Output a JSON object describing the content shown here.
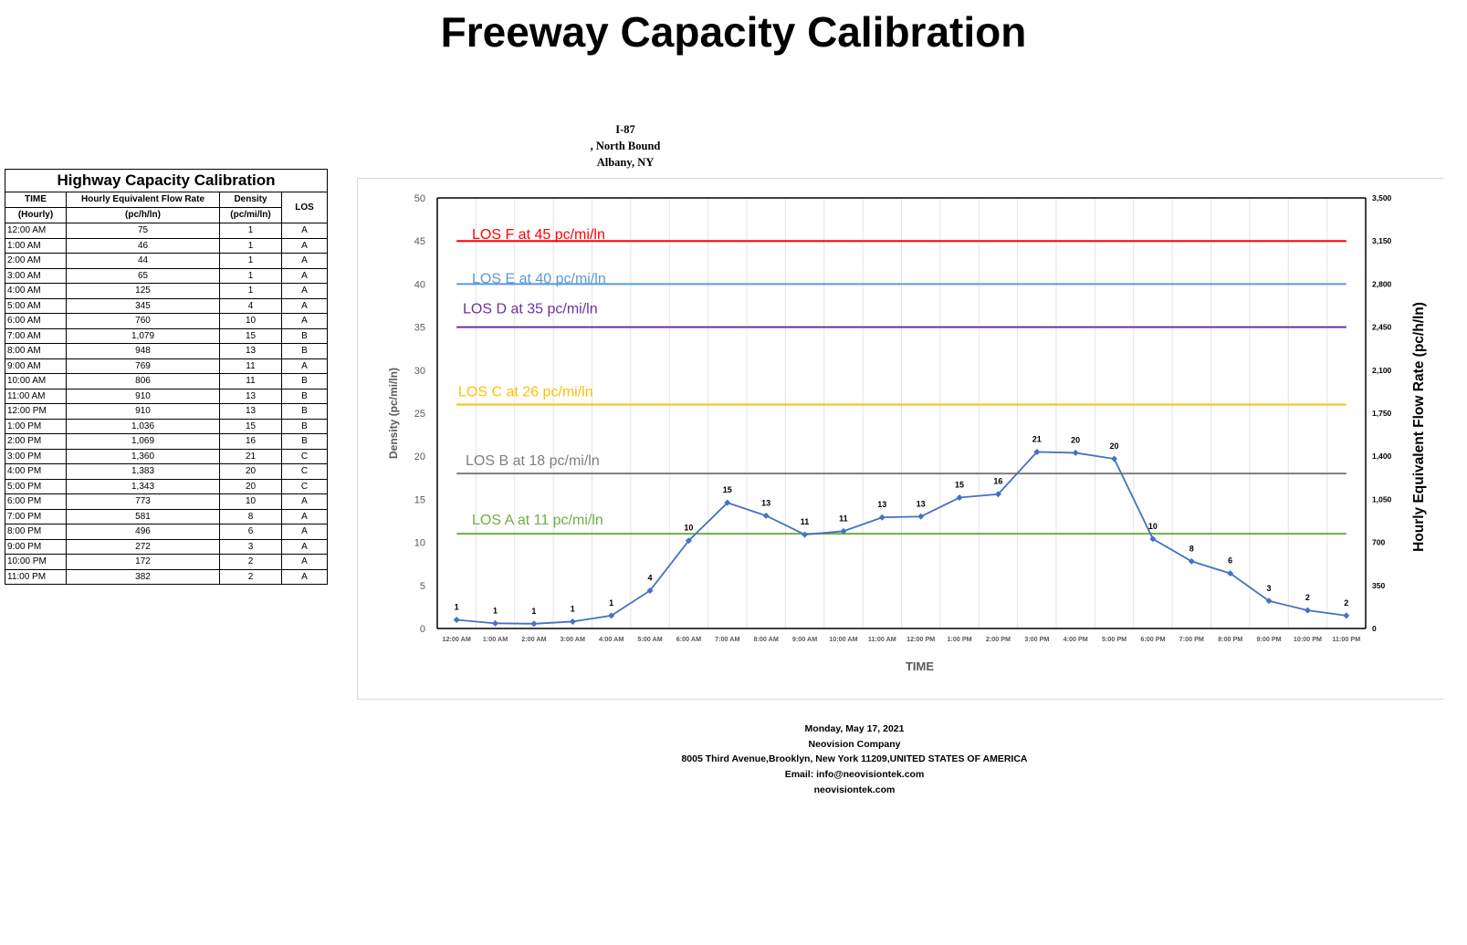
{
  "page_title": "Freeway Capacity Calibration",
  "table": {
    "title": "Highway Capacity Calibration",
    "headers": {
      "time_line1": "TIME",
      "time_line2": "(Hourly)",
      "flow_line1": "Hourly Equivalent Flow Rate",
      "flow_line2": "(pc/h/ln)",
      "density_line1": "Density",
      "density_line2": "(pc/mi/ln)",
      "los": "LOS"
    },
    "rows": [
      {
        "time": "12:00 AM",
        "flow": "75",
        "density": "1",
        "los": "A"
      },
      {
        "time": "1:00 AM",
        "flow": "46",
        "density": "1",
        "los": "A"
      },
      {
        "time": "2:00 AM",
        "flow": "44",
        "density": "1",
        "los": "A"
      },
      {
        "time": "3:00 AM",
        "flow": "65",
        "density": "1",
        "los": "A"
      },
      {
        "time": "4:00 AM",
        "flow": "125",
        "density": "1",
        "los": "A"
      },
      {
        "time": "5:00 AM",
        "flow": "345",
        "density": "4",
        "los": "A"
      },
      {
        "time": "6:00 AM",
        "flow": "760",
        "density": "10",
        "los": "A"
      },
      {
        "time": "7:00 AM",
        "flow": "1,079",
        "density": "15",
        "los": "B"
      },
      {
        "time": "8:00 AM",
        "flow": "948",
        "density": "13",
        "los": "B"
      },
      {
        "time": "9:00 AM",
        "flow": "769",
        "density": "11",
        "los": "A"
      },
      {
        "time": "10:00 AM",
        "flow": "806",
        "density": "11",
        "los": "B"
      },
      {
        "time": "11:00 AM",
        "flow": "910",
        "density": "13",
        "los": "B"
      },
      {
        "time": "12:00 PM",
        "flow": "910",
        "density": "13",
        "los": "B"
      },
      {
        "time": "1:00 PM",
        "flow": "1,036",
        "density": "15",
        "los": "B"
      },
      {
        "time": "2:00 PM",
        "flow": "1,069",
        "density": "16",
        "los": "B"
      },
      {
        "time": "3:00 PM",
        "flow": "1,360",
        "density": "21",
        "los": "C"
      },
      {
        "time": "4:00 PM",
        "flow": "1,383",
        "density": "20",
        "los": "C"
      },
      {
        "time": "5:00 PM",
        "flow": "1,343",
        "density": "20",
        "los": "C"
      },
      {
        "time": "6:00 PM",
        "flow": "773",
        "density": "10",
        "los": "A"
      },
      {
        "time": "7:00 PM",
        "flow": "581",
        "density": "8",
        "los": "A"
      },
      {
        "time": "8:00 PM",
        "flow": "496",
        "density": "6",
        "los": "A"
      },
      {
        "time": "9:00 PM",
        "flow": "272",
        "density": "3",
        "los": "A"
      },
      {
        "time": "10:00 PM",
        "flow": "172",
        "density": "2",
        "los": "A"
      },
      {
        "time": "11:00 PM",
        "flow": "382",
        "density": "2",
        "los": "A"
      }
    ]
  },
  "chart_heading": {
    "line1": "I-87",
    "line2": ", North Bound",
    "line3": "Albany, NY"
  },
  "chart_data": {
    "type": "line",
    "xlabel": "TIME",
    "ylabel": "Density (pc/mi/ln)",
    "y2label": "Hourly Equivalent Flow Rate (pc/h/ln)",
    "ylim": [
      0,
      50
    ],
    "y2lim": [
      0,
      3500
    ],
    "yticks": [
      0,
      5,
      10,
      15,
      20,
      25,
      30,
      35,
      40,
      45,
      50
    ],
    "y2ticks": [
      "0",
      "350",
      "700",
      "1,050",
      "1,400",
      "1,750",
      "2,100",
      "2,450",
      "2,800",
      "3,150",
      "3,500"
    ],
    "grid": true,
    "categories": [
      "12:00 AM",
      "1:00 AM",
      "2:00 AM",
      "3:00 AM",
      "4:00 AM",
      "5:00 AM",
      "6:00 AM",
      "7:00 AM",
      "8:00 AM",
      "9:00 AM",
      "10:00 AM",
      "11:00 AM",
      "12:00 PM",
      "1:00 PM",
      "2:00 PM",
      "3:00 PM",
      "4:00 PM",
      "5:00 PM",
      "6:00 PM",
      "7:00 PM",
      "8:00 PM",
      "9:00 PM",
      "10:00 PM",
      "11:00 PM"
    ],
    "series": [
      {
        "color": "#4472c4",
        "values": [
          1.0,
          0.6,
          0.55,
          0.8,
          1.5,
          4.4,
          10.2,
          14.6,
          13.1,
          10.9,
          11.3,
          12.9,
          13.0,
          15.2,
          15.6,
          20.5,
          20.4,
          19.7,
          10.4,
          7.8,
          6.4,
          3.2,
          2.1,
          1.5
        ],
        "labels": [
          "1",
          "1",
          "1",
          "1",
          "1",
          "4",
          "10",
          "15",
          "13",
          "11",
          "11",
          "13",
          "13",
          "15",
          "16",
          "21",
          "20",
          "20",
          "10",
          "8",
          "6",
          "3",
          "2",
          "2"
        ]
      }
    ],
    "thresholds": [
      {
        "value": 45,
        "label": "LOS F at 45 pc/mi/ln",
        "color": "#ff0000"
      },
      {
        "value": 40,
        "label": "LOS E at 40 pc/mi/ln",
        "color": "#5b9bd5"
      },
      {
        "value": 35,
        "label": "LOS D at 35 pc/mi/ln",
        "color": "#7030a0"
      },
      {
        "value": 26,
        "label": "LOS C at 26 pc/mi/ln",
        "color": "#ffc000"
      },
      {
        "value": 18,
        "label": "LOS B at 18 pc/mi/ln",
        "color": "#7f7f7f"
      },
      {
        "value": 11,
        "label": "LOS A at 11 pc/mi/ln",
        "color": "#70ad47"
      }
    ]
  },
  "footer": {
    "date": "Monday, May 17, 2021",
    "company": "Neovision Company",
    "address": "8005 Third Avenue,Brooklyn, New York 11209,UNITED STATES OF AMERICA",
    "email": "Email: info@neovisiontek.com",
    "website": "neovisiontek.com"
  }
}
